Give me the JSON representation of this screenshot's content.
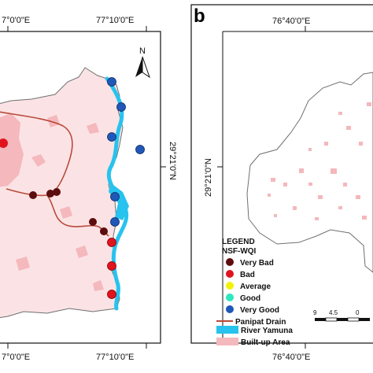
{
  "panel_a": {
    "top_left_coord": "7°0'0\"E",
    "top_right_coord": "77°10'0\"E",
    "bottom_left_coord": "7°0'0\"E",
    "bottom_right_coord": "77°10'0\"E",
    "right_lat_coord": "29°21'0\"N",
    "north_label": "N"
  },
  "panel_b": {
    "letter": "b",
    "top_coord": "76°40'0\"E",
    "bottom_coord": "76°40'0\"E",
    "left_lat_coord": "29°21'0\"N"
  },
  "legend": {
    "title": "LEGEND",
    "subtitle": "NSF-WQI",
    "items": [
      {
        "label": "Very Bad",
        "color": "#5c0d0d"
      },
      {
        "label": "Bad",
        "color": "#e0141e"
      },
      {
        "label": "Average",
        "color": "#f2f20a"
      },
      {
        "label": "Good",
        "color": "#2ee6c0"
      },
      {
        "label": "Very Good",
        "color": "#1f58b8"
      }
    ],
    "line_items": [
      {
        "label": "Panipat Drain",
        "color": "#b84a3a"
      },
      {
        "label": "River Yamuna",
        "color": "#27c3ee"
      },
      {
        "label": "Built-up Area",
        "color": "#f4b8bd"
      }
    ]
  },
  "scale_bar": {
    "labels": [
      "9",
      "4.5",
      "0"
    ]
  },
  "colors": {
    "builtup": "#f4b8bd",
    "river": "#27c3ee",
    "drain": "#b84a3a",
    "boundary": "#777777"
  }
}
